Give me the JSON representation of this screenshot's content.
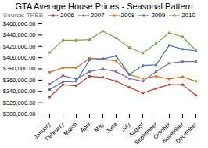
{
  "chart_data": {
    "type": "line",
    "title": "GTA Average House Prices - Seasonal Pattern",
    "subtitle": "Source: TREB",
    "categories": [
      "January",
      "February",
      "March",
      "April",
      "May",
      "June",
      "July",
      "August",
      "September",
      "October",
      "November",
      "December"
    ],
    "series": [
      {
        "name": "2006",
        "color": "#c0392b",
        "values": [
          330000,
          352000,
          350000,
          367000,
          365000,
          358000,
          347000,
          337000,
          345000,
          352000,
          352000,
          333000
        ]
      },
      {
        "name": "2007",
        "color": "#7b68c8",
        "values": [
          353000,
          368000,
          362000,
          375000,
          380000,
          375000,
          363000,
          358000,
          375000,
          390000,
          393000,
          393000
        ]
      },
      {
        "name": "2008",
        "color": "#e07020",
        "values": [
          374000,
          382000,
          382000,
          399000,
          398000,
          394000,
          370000,
          363000,
          367000,
          362000,
          366000,
          358000
        ]
      },
      {
        "name": "2009",
        "color": "#4472c4",
        "values": [
          343000,
          357000,
          358000,
          396000,
          398000,
          403000,
          370000,
          386000,
          387000,
          422000,
          415000,
          412000
        ]
      },
      {
        "name": "2010",
        "color": "#70ad47",
        "values": [
          409000,
          431000,
          431000,
          432000,
          447000,
          435000,
          418000,
          408000,
          425000,
          444000,
          437000,
          413000
        ]
      }
    ],
    "ylim": [
      300000,
      460000
    ],
    "yticks": [
      {
        "value": 300000,
        "label": "$300,000.00"
      },
      {
        "value": 320000,
        "label": "$320,000.00"
      },
      {
        "value": 340000,
        "label": "$340,000.00"
      },
      {
        "value": 360000,
        "label": "$360,000.00"
      },
      {
        "value": 380000,
        "label": "$380,000.00"
      },
      {
        "value": 400000,
        "label": "$400,000.00"
      },
      {
        "value": 420000,
        "label": "$420,000.00"
      },
      {
        "value": 440000,
        "label": "$440,000.00"
      },
      {
        "value": 460000,
        "label": "$460,000.00"
      }
    ],
    "grid": false,
    "legend": "upper left",
    "marker": "square"
  }
}
